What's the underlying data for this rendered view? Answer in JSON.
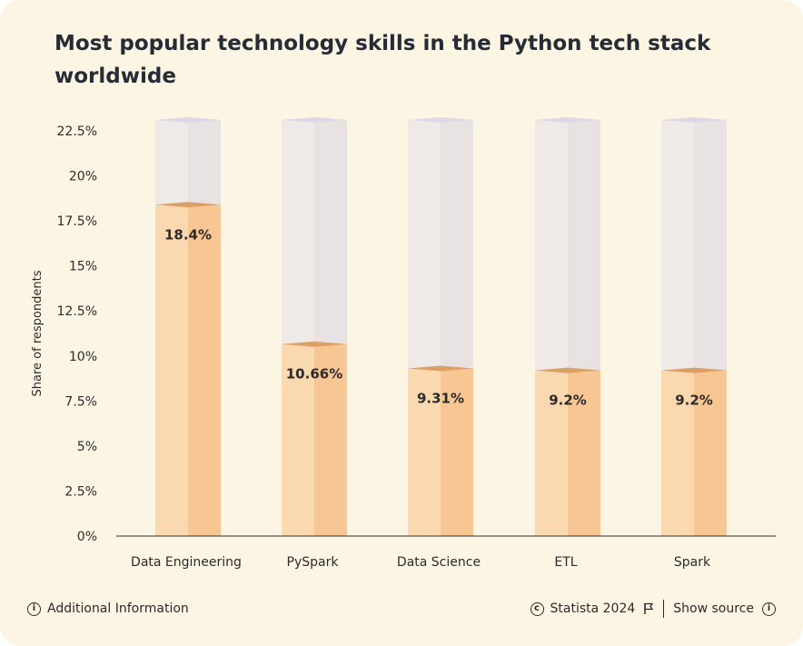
{
  "title": "Most popular technology skills in the Python tech stack worldwide",
  "footer": {
    "additional_info": "Additional Information",
    "copyright": "Statista 2024",
    "show_source": "Show source"
  },
  "icons": {
    "info": "info-icon",
    "copyright": "copyright-icon",
    "flag": "flag-icon"
  },
  "colors": {
    "background": "#fdf5e4",
    "bar_front": "#fad9b0",
    "bar_side": "#f7c693",
    "bar_top": "#dba066",
    "empty_front": "#efe9e8",
    "empty_side": "#e8e2e2",
    "empty_top": "#ddd8e6"
  },
  "chart_data": {
    "type": "bar",
    "title": "Most popular technology skills in the Python tech stack worldwide",
    "xlabel": "",
    "ylabel": "Share of respondents",
    "categories": [
      "Data Engineering",
      "PySpark",
      "Data Science",
      "ETL",
      "Spark"
    ],
    "values": [
      18.4,
      10.66,
      9.31,
      9.2,
      9.2
    ],
    "value_labels": [
      "18.4%",
      "10.66%",
      "9.31%",
      "9.2%",
      "9.2%"
    ],
    "ylim": [
      0,
      22.5
    ],
    "yticks": [
      0,
      2.5,
      5,
      7.5,
      10,
      12.5,
      15,
      17.5,
      20,
      22.5
    ],
    "ytick_labels": [
      "0%",
      "2.5%",
      "5%",
      "7.5%",
      "10%",
      "12.5%",
      "15%",
      "17.5%",
      "20%",
      "22.5%"
    ],
    "grid": false,
    "legend": "none"
  }
}
